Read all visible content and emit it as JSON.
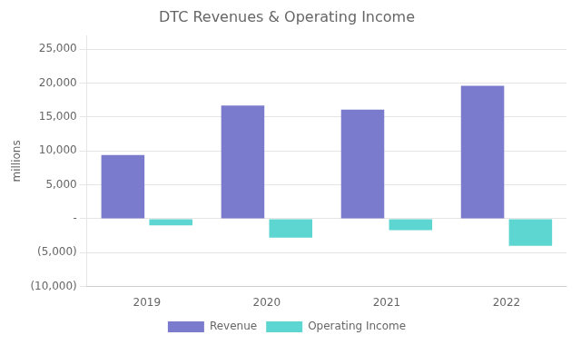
{
  "chart_data": {
    "type": "bar",
    "title": "DTC Revenues & Operating Income",
    "categories": [
      "2019",
      "2020",
      "2021",
      "2022"
    ],
    "series": [
      {
        "name": "Revenue",
        "color": "#7B7BCE",
        "values": [
          9400,
          16700,
          16100,
          19600
        ]
      },
      {
        "name": "Operating Income",
        "color": "#5DD5D0",
        "values": [
          -1000,
          -2800,
          -1700,
          -4000
        ]
      }
    ],
    "ylabel": "millions",
    "ylim": [
      -10000,
      27000
    ],
    "yticks": [
      {
        "value": -10000,
        "label": "(10,000)"
      },
      {
        "value": -5000,
        "label": "(5,000)"
      },
      {
        "value": 0,
        "label": "-"
      },
      {
        "value": 5000,
        "label": "5,000"
      },
      {
        "value": 10000,
        "label": "10,000"
      },
      {
        "value": 15000,
        "label": "15,000"
      },
      {
        "value": 20000,
        "label": "20,000"
      },
      {
        "value": 25000,
        "label": "25,000"
      }
    ],
    "grid": true,
    "legend": "bottom"
  }
}
